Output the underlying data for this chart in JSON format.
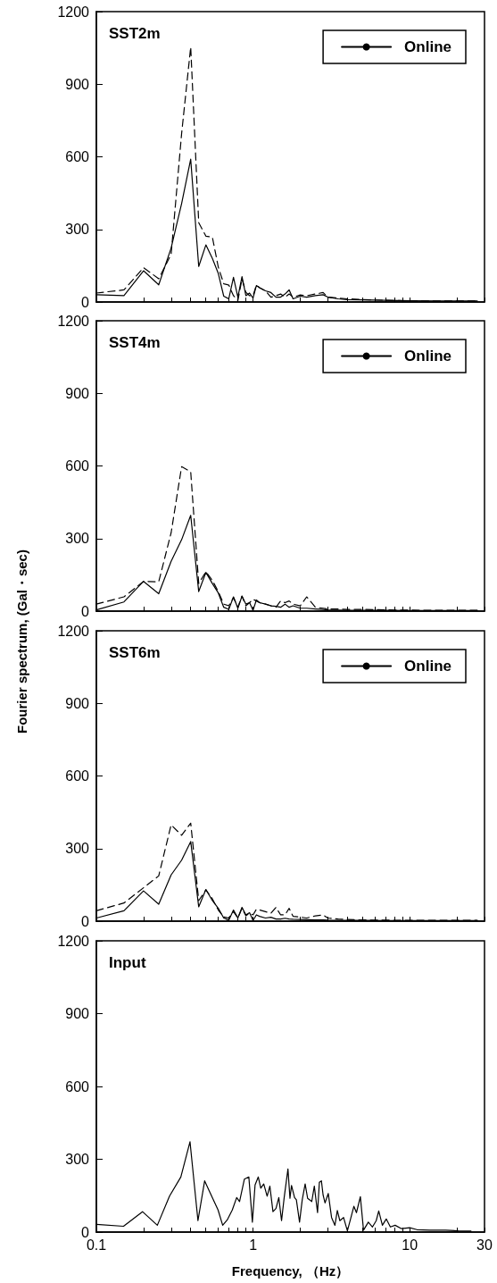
{
  "chart_data": [
    {
      "type": "line",
      "title": "SST2m",
      "legend": "top right",
      "tick_labels": "y",
      "grid": false,
      "x": [
        0.1,
        0.15,
        0.2,
        0.25,
        0.3,
        0.35,
        0.4,
        0.45,
        0.5,
        0.55,
        0.6,
        0.65,
        0.7,
        0.75,
        0.8,
        0.85,
        0.9,
        0.95,
        1,
        1.05,
        1.1,
        1.2,
        1.3,
        1.4,
        1.5,
        1.6,
        1.7,
        1.8,
        2,
        2.2,
        2.5,
        2.8,
        3,
        3.5,
        4,
        5,
        7,
        10,
        15,
        27
      ],
      "series": [
        {
          "name": "Online",
          "color": "#000000",
          "line_style": "solid",
          "values": [
            30,
            26,
            129,
            71,
            223,
            407,
            590,
            147,
            236,
            180,
            118,
            24,
            13,
            102,
            20,
            105,
            26,
            37,
            16,
            68,
            59,
            46,
            39,
            20,
            20,
            33,
            50,
            13,
            24,
            20,
            26,
            30,
            20,
            13,
            10,
            9,
            7,
            5,
            4,
            4
          ]
        },
        {
          "color": "#000000",
          "line_style": "dashed",
          "values": [
            37,
            50,
            142,
            96,
            197,
            696,
            1054,
            328,
            272,
            268,
            144,
            75,
            70,
            26,
            6,
            95,
            40,
            26,
            26,
            70,
            59,
            46,
            20,
            26,
            33,
            20,
            33,
            20,
            29,
            26,
            33,
            39,
            20,
            16,
            13,
            10,
            7,
            5,
            4,
            4
          ]
        }
      ],
      "xlim": [
        0.1,
        30
      ],
      "xticks": [
        0.1,
        {
          "value": 0.2,
          "label": null
        },
        {
          "value": 0.3,
          "label": null
        },
        {
          "value": 0.4,
          "label": null
        },
        {
          "value": 0.5,
          "label": null
        },
        {
          "value": 0.6,
          "label": null
        },
        {
          "value": 0.7,
          "label": null
        },
        {
          "value": 0.8,
          "label": null
        },
        {
          "value": 0.9,
          "label": null
        },
        1,
        {
          "value": 2,
          "label": null
        },
        {
          "value": 3,
          "label": null
        },
        {
          "value": 4,
          "label": null
        },
        {
          "value": 5,
          "label": null
        },
        {
          "value": 6,
          "label": null
        },
        {
          "value": 7,
          "label": null
        },
        {
          "value": 8,
          "label": null
        },
        {
          "value": 9,
          "label": null
        },
        10,
        {
          "value": 20,
          "label": null
        },
        30
      ],
      "log": "x",
      "ylim": [
        0,
        1200
      ],
      "yticks": [
        0,
        300,
        600,
        900,
        1200
      ]
    },
    {
      "type": "line",
      "title": "SST4m",
      "legend": "top right",
      "tick_labels": "y",
      "grid": false,
      "ylabel": "Fourier spectrum, (Gal・sec)",
      "x": [
        0.1,
        0.15,
        0.2,
        0.25,
        0.3,
        0.35,
        0.4,
        0.45,
        0.5,
        0.55,
        0.6,
        0.65,
        0.7,
        0.75,
        0.8,
        0.85,
        0.9,
        0.95,
        1,
        1.05,
        1.1,
        1.2,
        1.3,
        1.4,
        1.5,
        1.6,
        1.7,
        1.8,
        2,
        2.2,
        2.5,
        2.8,
        3,
        3.5,
        4,
        5,
        7,
        10,
        15,
        27
      ],
      "series": [
        {
          "name": "Online",
          "color": "#000000",
          "line_style": "solid",
          "values": [
            5,
            38,
            123,
            72,
            206,
            295,
            396,
            81,
            160,
            114,
            75,
            16,
            7,
            59,
            12,
            62,
            29,
            35,
            3,
            46,
            35,
            29,
            22,
            20,
            16,
            29,
            16,
            22,
            12,
            12,
            9,
            7,
            5,
            4,
            3,
            3,
            3,
            2,
            2,
            2
          ]
        },
        {
          "color": "#000000",
          "line_style": "dashed",
          "values": [
            29,
            59,
            123,
            121,
            324,
            597,
            576,
            114,
            163,
            127,
            81,
            29,
            22,
            55,
            16,
            62,
            22,
            35,
            49,
            42,
            35,
            29,
            22,
            16,
            42,
            35,
            42,
            29,
            22,
            59,
            16,
            12,
            9,
            9,
            7,
            7,
            5,
            4,
            3,
            3
          ]
        }
      ],
      "xlim": [
        0.1,
        30
      ],
      "xticks": [
        0.1,
        {
          "value": 0.2,
          "label": null
        },
        {
          "value": 0.3,
          "label": null
        },
        {
          "value": 0.4,
          "label": null
        },
        {
          "value": 0.5,
          "label": null
        },
        {
          "value": 0.6,
          "label": null
        },
        {
          "value": 0.7,
          "label": null
        },
        {
          "value": 0.8,
          "label": null
        },
        {
          "value": 0.9,
          "label": null
        },
        1,
        {
          "value": 2,
          "label": null
        },
        {
          "value": 3,
          "label": null
        },
        {
          "value": 4,
          "label": null
        },
        {
          "value": 5,
          "label": null
        },
        {
          "value": 6,
          "label": null
        },
        {
          "value": 7,
          "label": null
        },
        {
          "value": 8,
          "label": null
        },
        {
          "value": 9,
          "label": null
        },
        10,
        {
          "value": 20,
          "label": null
        },
        30
      ],
      "log": "x",
      "ylim": [
        0,
        1200
      ],
      "yticks": [
        0,
        300,
        600,
        900,
        1200
      ]
    },
    {
      "type": "line",
      "title": "SST6m",
      "legend": "top right",
      "tick_labels": "y",
      "grid": false,
      "x": [
        0.1,
        0.15,
        0.2,
        0.25,
        0.3,
        0.35,
        0.4,
        0.45,
        0.5,
        0.55,
        0.6,
        0.65,
        0.7,
        0.75,
        0.8,
        0.85,
        0.9,
        0.95,
        1,
        1.05,
        1.1,
        1.2,
        1.3,
        1.4,
        1.5,
        1.6,
        1.7,
        1.8,
        2,
        2.2,
        2.5,
        2.8,
        3,
        3.5,
        4,
        5,
        7,
        10,
        15,
        27
      ],
      "series": [
        {
          "name": "Online",
          "color": "#000000",
          "line_style": "solid",
          "values": [
            13,
            43,
            125,
            70,
            191,
            252,
            329,
            59,
            131,
            85,
            53,
            13,
            4,
            46,
            13,
            57,
            26,
            35,
            3,
            26,
            20,
            13,
            16,
            9,
            9,
            12,
            9,
            8,
            7,
            6,
            5,
            5,
            4,
            3,
            3,
            3,
            2,
            2,
            2,
            2
          ]
        },
        {
          "color": "#000000",
          "line_style": "dashed",
          "values": [
            43,
            75,
            138,
            187,
            398,
            355,
            405,
            85,
            129,
            92,
            46,
            17,
            13,
            39,
            13,
            53,
            22,
            33,
            26,
            49,
            46,
            39,
            33,
            57,
            26,
            26,
            53,
            20,
            17,
            13,
            22,
            26,
            13,
            9,
            7,
            5,
            4,
            3,
            3,
            3
          ]
        }
      ],
      "xlim": [
        0.1,
        30
      ],
      "xticks": [
        0.1,
        {
          "value": 0.2,
          "label": null
        },
        {
          "value": 0.3,
          "label": null
        },
        {
          "value": 0.4,
          "label": null
        },
        {
          "value": 0.5,
          "label": null
        },
        {
          "value": 0.6,
          "label": null
        },
        {
          "value": 0.7,
          "label": null
        },
        {
          "value": 0.8,
          "label": null
        },
        {
          "value": 0.9,
          "label": null
        },
        1,
        {
          "value": 2,
          "label": null
        },
        {
          "value": 3,
          "label": null
        },
        {
          "value": 4,
          "label": null
        },
        {
          "value": 5,
          "label": null
        },
        {
          "value": 6,
          "label": null
        },
        {
          "value": 7,
          "label": null
        },
        {
          "value": 8,
          "label": null
        },
        {
          "value": 9,
          "label": null
        },
        10,
        {
          "value": 20,
          "label": null
        },
        30
      ],
      "log": "x",
      "ylim": [
        0,
        1200
      ],
      "yticks": [
        0,
        300,
        600,
        900,
        1200
      ]
    },
    {
      "type": "line",
      "title": "Input",
      "xlabel": "Frequency, （Hz）",
      "grid": false,
      "x": [
        0.1,
        0.149,
        0.197,
        0.245,
        0.293,
        0.346,
        0.396,
        0.445,
        0.491,
        0.55,
        0.598,
        0.64,
        0.684,
        0.737,
        0.786,
        0.82,
        0.88,
        0.94,
        0.99,
        1.03,
        1.08,
        1.12,
        1.17,
        1.23,
        1.28,
        1.34,
        1.4,
        1.46,
        1.52,
        1.58,
        1.67,
        1.72,
        1.76,
        1.84,
        1.89,
        1.98,
        2.06,
        2.15,
        2.23,
        2.37,
        2.46,
        2.58,
        2.65,
        2.73,
        2.8,
        2.88,
        3.02,
        3.17,
        3.33,
        3.45,
        3.58,
        3.78,
        4.0,
        4.19,
        4.4,
        4.57,
        4.84,
        5.07,
        5.44,
        5.78,
        6.11,
        6.34,
        6.69,
        7.08,
        7.52,
        8.07,
        8.86,
        10.0,
        11.1,
        13.4,
        16.9,
        20.4,
        24.6
      ],
      "series": [
        {
          "color": "#000000",
          "line_style": "solid",
          "values": [
            32,
            24,
            84,
            28,
            148,
            227,
            372,
            47,
            211,
            142,
            91,
            28,
            50,
            91,
            142,
            126,
            218,
            227,
            41,
            194,
            227,
            181,
            198,
            148,
            189,
            84,
            97,
            142,
            47,
            142,
            260,
            139,
            192,
            142,
            133,
            41,
            133,
            198,
            139,
            126,
            189,
            80,
            205,
            211,
            152,
            120,
            159,
            60,
            28,
            89,
            47,
            60,
            5,
            54,
            106,
            80,
            146,
            8,
            41,
            21,
            47,
            87,
            28,
            54,
            21,
            28,
            14,
            18,
            10,
            8,
            8,
            5,
            4
          ]
        }
      ],
      "xlim": [
        0.1,
        30
      ],
      "xticks": [
        0.1,
        {
          "value": 0.2,
          "label": null
        },
        {
          "value": 0.3,
          "label": null
        },
        {
          "value": 0.4,
          "label": null
        },
        {
          "value": 0.5,
          "label": null
        },
        {
          "value": 0.6,
          "label": null
        },
        {
          "value": 0.7,
          "label": null
        },
        {
          "value": 0.8,
          "label": null
        },
        {
          "value": 0.9,
          "label": null
        },
        1,
        {
          "value": 2,
          "label": null
        },
        {
          "value": 3,
          "label": null
        },
        {
          "value": 4,
          "label": null
        },
        {
          "value": 5,
          "label": null
        },
        {
          "value": 6,
          "label": null
        },
        {
          "value": 7,
          "label": null
        },
        {
          "value": 8,
          "label": null
        },
        {
          "value": 9,
          "label": null
        },
        10,
        {
          "value": 20,
          "label": null
        },
        30
      ],
      "log": "x",
      "ylim": [
        0,
        1200
      ],
      "yticks": [
        0,
        300,
        600,
        900,
        1200
      ]
    }
  ]
}
